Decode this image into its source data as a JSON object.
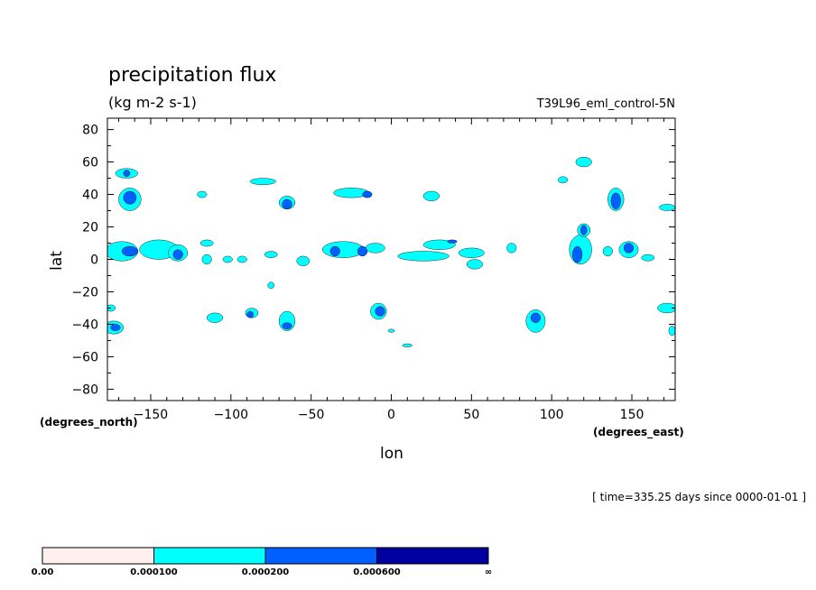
{
  "chart_data": {
    "type": "heatmap",
    "title": "precipitation flux",
    "subtitle": "(kg m-2 s-1)",
    "dataset_label": "T39L96_eml_control-5N",
    "xlabel": "lon",
    "ylabel": "lat",
    "x_unit": "(degrees_east)",
    "y_unit": "(degrees_north)",
    "time_label": "[ time=335.25 days since 0000-01-01 ]",
    "xlim": [
      -177,
      177
    ],
    "ylim": [
      -87,
      87
    ],
    "x_ticks": [
      -150,
      -100,
      -50,
      0,
      50,
      100,
      150
    ],
    "x_tick_labels": [
      "−150",
      "−100",
      "−50",
      "0",
      "50",
      "100",
      "150"
    ],
    "y_ticks": [
      80,
      60,
      40,
      20,
      0,
      -20,
      -40,
      -60,
      -80
    ],
    "y_tick_labels": [
      "80",
      "60",
      "40",
      "20",
      "0",
      "−20",
      "−40",
      "−60",
      "−80"
    ],
    "legend": {
      "boundaries": [
        "0.00",
        "0.000100",
        "0.000200",
        "0.000600",
        "∞"
      ],
      "colors": [
        "#fff0ee",
        "#00ffff",
        "#0060ff",
        "#0000a0"
      ]
    },
    "regions": [
      {
        "level": 1,
        "lon": -168,
        "lat": 5,
        "rx": 10,
        "ry": 6
      },
      {
        "level": 1,
        "lon": -145,
        "lat": 6,
        "rx": 12,
        "ry": 6
      },
      {
        "level": 1,
        "lon": -133,
        "lat": 4,
        "rx": 6,
        "ry": 5
      },
      {
        "level": 1,
        "lon": -163,
        "lat": 37,
        "rx": 7,
        "ry": 7
      },
      {
        "level": 1,
        "lon": -165,
        "lat": 53,
        "rx": 7,
        "ry": 3
      },
      {
        "level": 1,
        "lon": -173,
        "lat": -42,
        "rx": 6,
        "ry": 4
      },
      {
        "level": 1,
        "lon": -175,
        "lat": -30,
        "rx": 3,
        "ry": 2
      },
      {
        "level": 1,
        "lon": -118,
        "lat": 40,
        "rx": 3,
        "ry": 2
      },
      {
        "level": 1,
        "lon": -115,
        "lat": 10,
        "rx": 4,
        "ry": 2
      },
      {
        "level": 1,
        "lon": -115,
        "lat": 0,
        "rx": 3,
        "ry": 3
      },
      {
        "level": 1,
        "lon": -102,
        "lat": 0,
        "rx": 3,
        "ry": 2
      },
      {
        "level": 1,
        "lon": -80,
        "lat": 48,
        "rx": 8,
        "ry": 2
      },
      {
        "level": 1,
        "lon": -65,
        "lat": 35,
        "rx": 5,
        "ry": 4
      },
      {
        "level": 1,
        "lon": -93,
        "lat": 0,
        "rx": 3,
        "ry": 2
      },
      {
        "level": 1,
        "lon": -75,
        "lat": 3,
        "rx": 4,
        "ry": 2
      },
      {
        "level": 1,
        "lon": -55,
        "lat": -1,
        "rx": 4,
        "ry": 3
      },
      {
        "level": 1,
        "lon": -30,
        "lat": 6,
        "rx": 13,
        "ry": 5
      },
      {
        "level": 1,
        "lon": -10,
        "lat": 7,
        "rx": 6,
        "ry": 3
      },
      {
        "level": 1,
        "lon": -25,
        "lat": 41,
        "rx": 11,
        "ry": 3
      },
      {
        "level": 1,
        "lon": -8,
        "lat": -32,
        "rx": 5,
        "ry": 5
      },
      {
        "level": 1,
        "lon": -87,
        "lat": -33,
        "rx": 4,
        "ry": 3
      },
      {
        "level": 1,
        "lon": -65,
        "lat": -38,
        "rx": 5,
        "ry": 6
      },
      {
        "level": 1,
        "lon": -110,
        "lat": -36,
        "rx": 5,
        "ry": 3
      },
      {
        "level": 1,
        "lon": -75,
        "lat": -16,
        "rx": 2,
        "ry": 2
      },
      {
        "level": 1,
        "lon": 25,
        "lat": 39,
        "rx": 5,
        "ry": 3
      },
      {
        "level": 1,
        "lon": 30,
        "lat": 9,
        "rx": 10,
        "ry": 3
      },
      {
        "level": 1,
        "lon": 20,
        "lat": 2,
        "rx": 16,
        "ry": 3
      },
      {
        "level": 1,
        "lon": 50,
        "lat": 4,
        "rx": 8,
        "ry": 3
      },
      {
        "level": 1,
        "lon": 52,
        "lat": -3,
        "rx": 5,
        "ry": 3
      },
      {
        "level": 1,
        "lon": 75,
        "lat": 7,
        "rx": 3,
        "ry": 3
      },
      {
        "level": 1,
        "lon": 90,
        "lat": -38,
        "rx": 6,
        "ry": 7
      },
      {
        "level": 1,
        "lon": 118,
        "lat": 6,
        "rx": 7,
        "ry": 9
      },
      {
        "level": 1,
        "lon": 120,
        "lat": 18,
        "rx": 4,
        "ry": 4
      },
      {
        "level": 1,
        "lon": 140,
        "lat": 37,
        "rx": 5,
        "ry": 7
      },
      {
        "level": 1,
        "lon": 148,
        "lat": 6,
        "rx": 6,
        "ry": 5
      },
      {
        "level": 1,
        "lon": 120,
        "lat": 60,
        "rx": 5,
        "ry": 3
      },
      {
        "level": 1,
        "lon": 107,
        "lat": 49,
        "rx": 3,
        "ry": 2
      },
      {
        "level": 1,
        "lon": 172,
        "lat": 32,
        "rx": 5,
        "ry": 2
      },
      {
        "level": 1,
        "lon": 172,
        "lat": -30,
        "rx": 6,
        "ry": 3
      },
      {
        "level": 1,
        "lon": 175,
        "lat": -44,
        "rx": 2,
        "ry": 3
      },
      {
        "level": 1,
        "lon": 160,
        "lat": 1,
        "rx": 4,
        "ry": 2
      },
      {
        "level": 1,
        "lon": 135,
        "lat": 5,
        "rx": 3,
        "ry": 3
      },
      {
        "level": 1,
        "lon": 10,
        "lat": -53,
        "rx": 3,
        "ry": 1
      },
      {
        "level": 1,
        "lon": 0,
        "lat": -44,
        "rx": 2,
        "ry": 1
      },
      {
        "level": 2,
        "lon": -163,
        "lat": 38,
        "rx": 4,
        "ry": 4
      },
      {
        "level": 2,
        "lon": -163,
        "lat": 5,
        "rx": 5,
        "ry": 3
      },
      {
        "level": 2,
        "lon": -133,
        "lat": 3,
        "rx": 3,
        "ry": 3
      },
      {
        "level": 2,
        "lon": -165,
        "lat": 53,
        "rx": 2,
        "ry": 2
      },
      {
        "level": 2,
        "lon": -172,
        "lat": -42,
        "rx": 3,
        "ry": 2
      },
      {
        "level": 2,
        "lon": -65,
        "lat": 34,
        "rx": 3,
        "ry": 3
      },
      {
        "level": 2,
        "lon": -35,
        "lat": 5,
        "rx": 3,
        "ry": 3
      },
      {
        "level": 2,
        "lon": -18,
        "lat": 5,
        "rx": 3,
        "ry": 3
      },
      {
        "level": 2,
        "lon": -15,
        "lat": 40,
        "rx": 3,
        "ry": 2
      },
      {
        "level": 2,
        "lon": -7,
        "lat": -32,
        "rx": 3,
        "ry": 3
      },
      {
        "level": 2,
        "lon": -88,
        "lat": -34,
        "rx": 2,
        "ry": 2
      },
      {
        "level": 2,
        "lon": -65,
        "lat": -41,
        "rx": 3,
        "ry": 2
      },
      {
        "level": 2,
        "lon": 38,
        "lat": 11,
        "rx": 3,
        "ry": 1
      },
      {
        "level": 2,
        "lon": 90,
        "lat": -36,
        "rx": 3,
        "ry": 3
      },
      {
        "level": 2,
        "lon": 116,
        "lat": 3,
        "rx": 3,
        "ry": 5
      },
      {
        "level": 2,
        "lon": 120,
        "lat": 18,
        "rx": 2,
        "ry": 3
      },
      {
        "level": 2,
        "lon": 140,
        "lat": 36,
        "rx": 3,
        "ry": 5
      },
      {
        "level": 2,
        "lon": 148,
        "lat": 7,
        "rx": 3,
        "ry": 3
      }
    ]
  }
}
